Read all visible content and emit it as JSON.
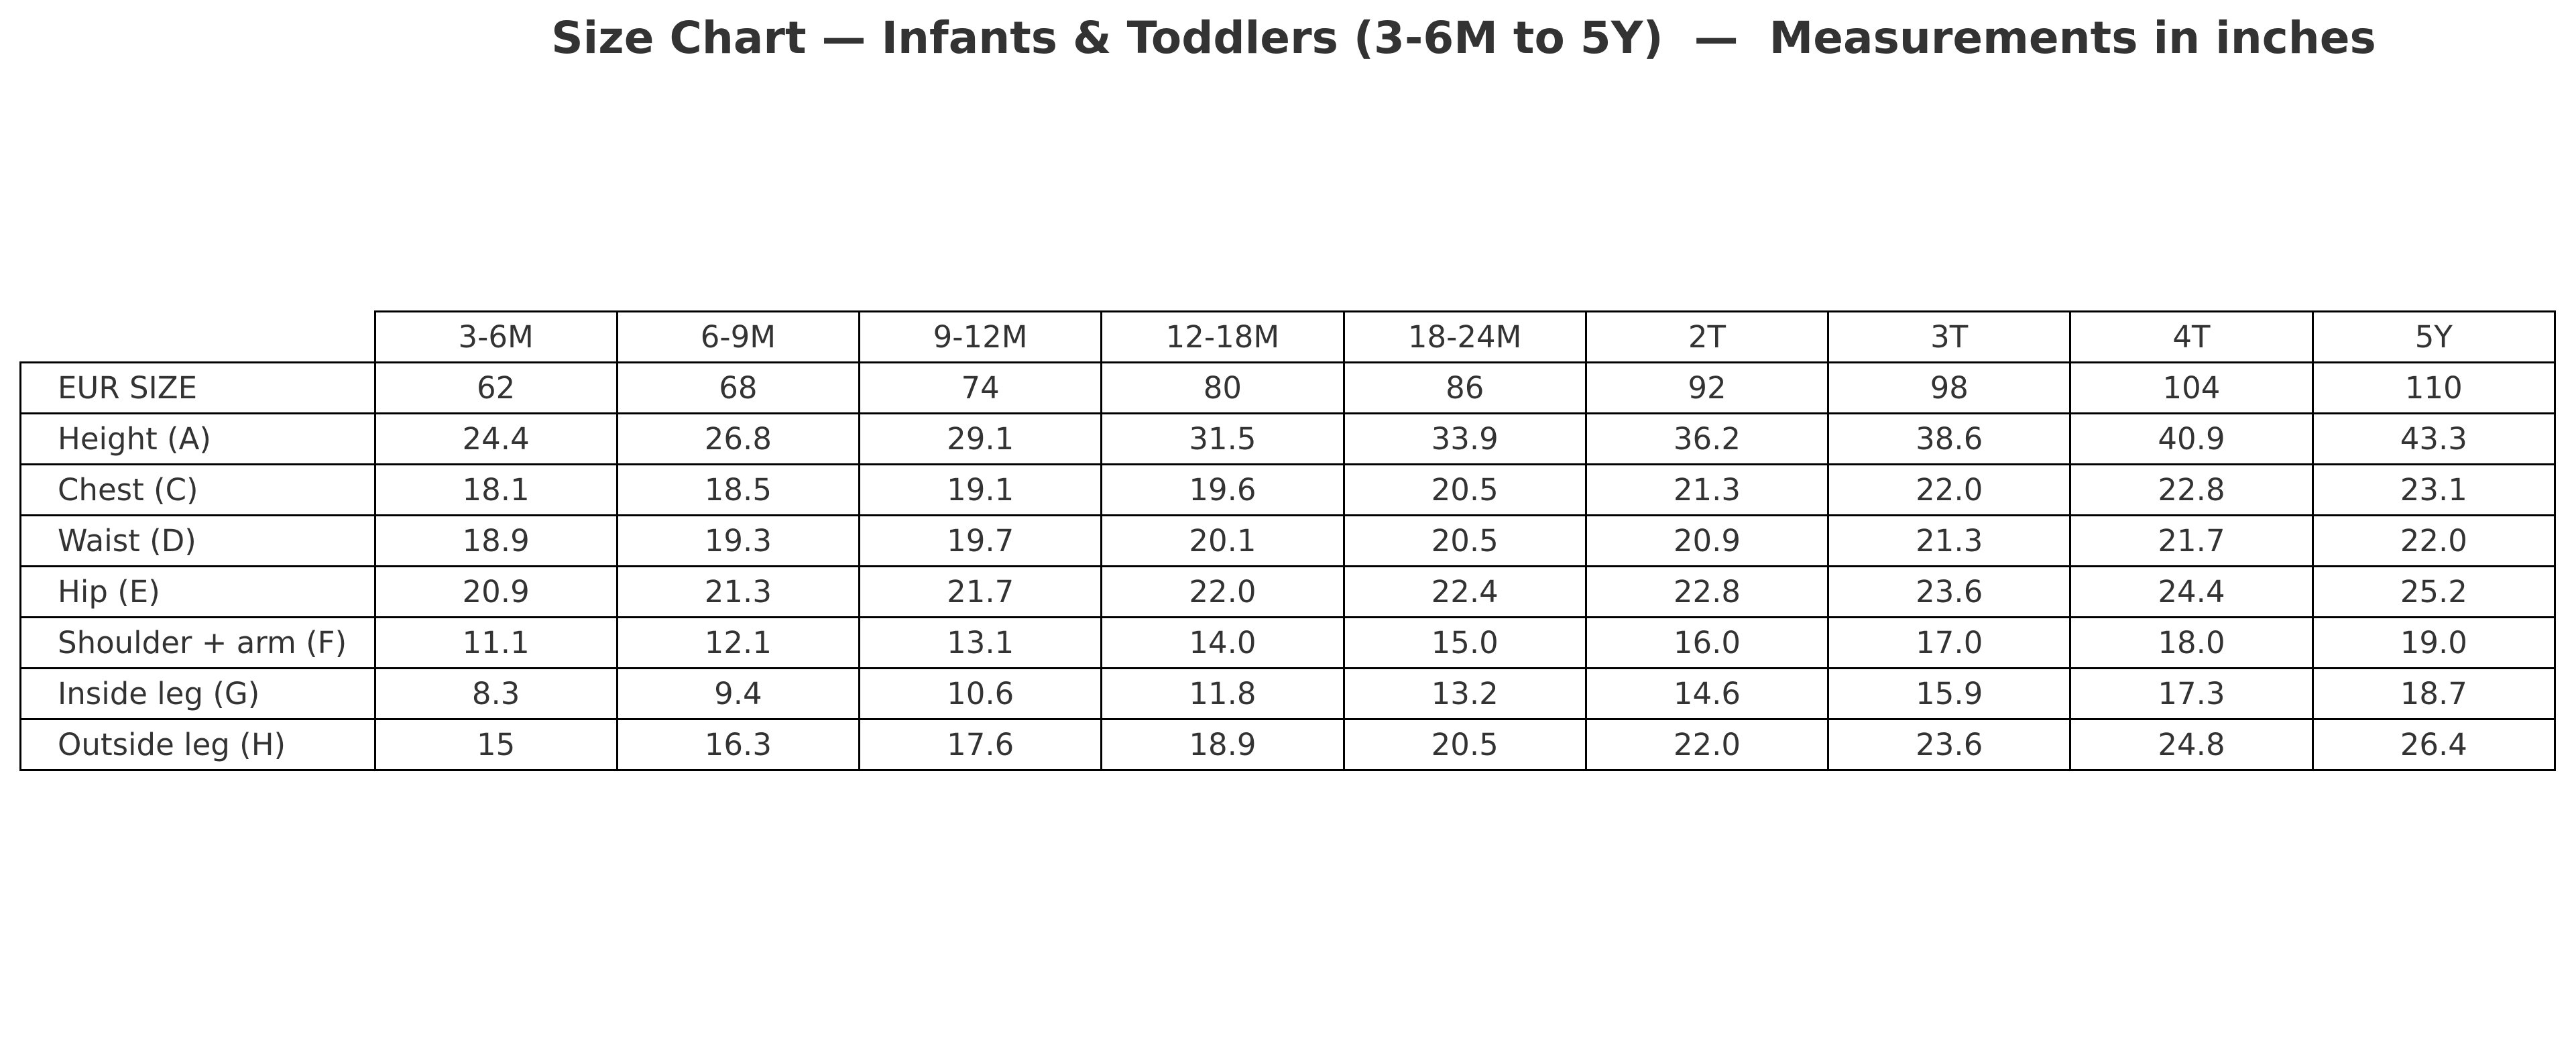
{
  "header": {
    "title": "Size Chart — Infants & Toddlers (3-6M to 5Y)  —  Measurements in inches"
  },
  "table": {
    "columns": [
      "3-6M",
      "6-9M",
      "9-12M",
      "12-18M",
      "18-24M",
      "2T",
      "3T",
      "4T",
      "5Y"
    ],
    "rows": [
      {
        "label": "EUR SIZE",
        "values": [
          "62",
          "68",
          "74",
          "80",
          "86",
          "92",
          "98",
          "104",
          "110"
        ]
      },
      {
        "label": "Height (A)",
        "values": [
          "24.4",
          "26.8",
          "29.1",
          "31.5",
          "33.9",
          "36.2",
          "38.6",
          "40.9",
          "43.3"
        ]
      },
      {
        "label": "Chest (C)",
        "values": [
          "18.1",
          "18.5",
          "19.1",
          "19.6",
          "20.5",
          "21.3",
          "22.0",
          "22.8",
          "23.1"
        ]
      },
      {
        "label": "Waist (D)",
        "values": [
          "18.9",
          "19.3",
          "19.7",
          "20.1",
          "20.5",
          "20.9",
          "21.3",
          "21.7",
          "22.0"
        ]
      },
      {
        "label": "Hip (E)",
        "values": [
          "20.9",
          "21.3",
          "21.7",
          "22.0",
          "22.4",
          "22.8",
          "23.6",
          "24.4",
          "25.2"
        ]
      },
      {
        "label": "Shoulder + arm (F)",
        "values": [
          "11.1",
          "12.1",
          "13.1",
          "14.0",
          "15.0",
          "16.0",
          "17.0",
          "18.0",
          "19.0"
        ]
      },
      {
        "label": "Inside leg (G)",
        "values": [
          "8.3",
          "9.4",
          "10.6",
          "11.8",
          "13.2",
          "14.6",
          "15.9",
          "17.3",
          "18.7"
        ]
      },
      {
        "label": "Outside leg (H)",
        "values": [
          "15",
          "16.3",
          "17.6",
          "18.9",
          "20.5",
          "22.0",
          "23.6",
          "24.8",
          "26.4"
        ]
      }
    ]
  }
}
